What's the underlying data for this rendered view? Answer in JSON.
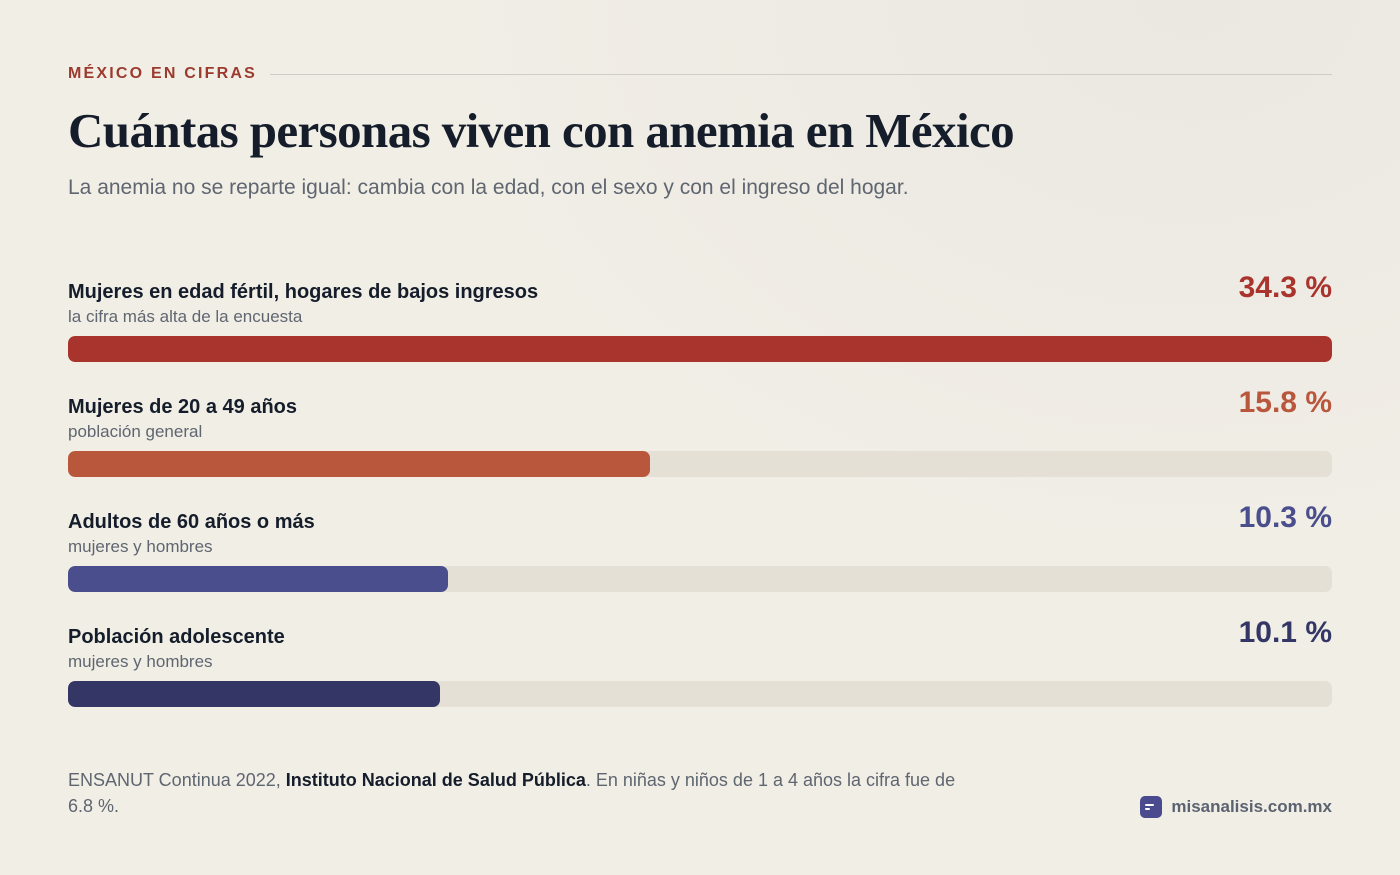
{
  "header": {
    "kicker": "MÉXICO EN CIFRAS",
    "title": "Cuántas personas viven con anemia en México",
    "subtitle": "La anemia no se reparte igual: cambia con la edad, con el sexo y con el ingreso del hogar."
  },
  "chart_data": {
    "type": "bar",
    "orientation": "horizontal",
    "title": "Cuántas personas viven con anemia en México",
    "unit": "%",
    "xlim": [
      0,
      34.3
    ],
    "categories": [
      "Mujeres en edad fértil, hogares de bajos ingresos",
      "Mujeres de 20 a 49 años",
      "Adultos de 60 años o más",
      "Población adolescente"
    ],
    "values": [
      34.3,
      15.8,
      10.3,
      10.1
    ],
    "bars": [
      {
        "label": "Mujeres en edad fértil, hogares de bajos ingresos",
        "sublabel": "la cifra más alta de la encuesta",
        "value": 34.3,
        "display": "34.3 %",
        "color": "#a9342d"
      },
      {
        "label": "Mujeres de 20 a 49 años",
        "sublabel": "población general",
        "value": 15.8,
        "display": "15.8 %",
        "color": "#b8573c"
      },
      {
        "label": "Adultos de 60 años o más",
        "sublabel": "mujeres y hombres",
        "value": 10.3,
        "display": "10.3 %",
        "color": "#4a4e8c"
      },
      {
        "label": "Población adolescente",
        "sublabel": "mujeres y hombres",
        "value": 10.1,
        "display": "10.1 %",
        "color": "#343766"
      }
    ],
    "track_color": "#e5e0d5"
  },
  "footer": {
    "source_pre": "ENSANUT Continua 2022, ",
    "source_org": "Instituto Nacional de Salud Pública",
    "source_post": ". En niñas y niños de 1 a 4 años la cifra fue de 6.8 %.",
    "brand": "misanalisis.com.mx"
  }
}
